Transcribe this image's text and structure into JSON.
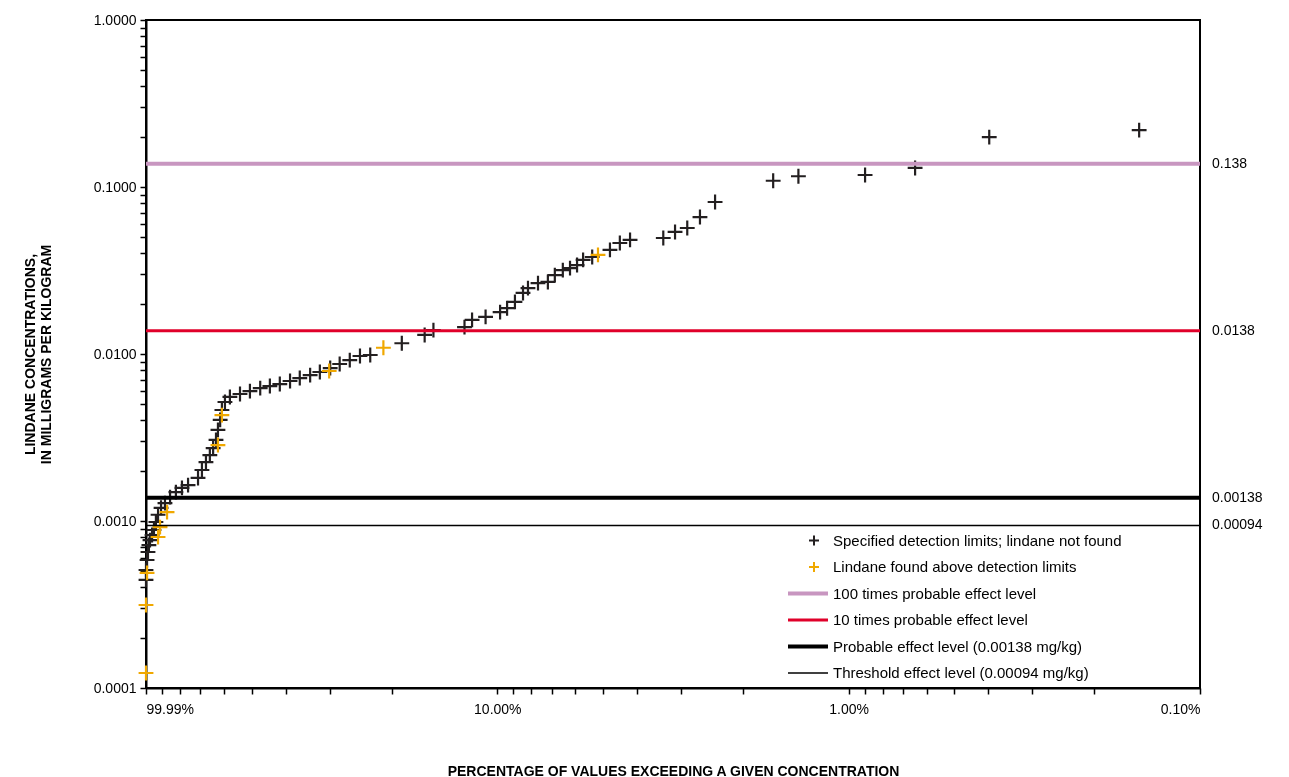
{
  "chart_data": {
    "type": "scatter",
    "xlabel": "PERCENTAGE OF VALUES EXCEEDING A GIVEN CONCENTRATION",
    "ylabel": "LINDANE CONCENTRATIONS,\nIN MILLIGRAMS PER KILOGRAM",
    "log": "xy",
    "grid": false,
    "legend": "bottom right",
    "marker": "cross",
    "xlim": [
      99.99,
      0.1
    ],
    "xticks": [
      {
        "value": 99.99,
        "label": "99.99%"
      },
      {
        "value": 90,
        "label": null
      },
      {
        "value": 80,
        "label": null
      },
      {
        "value": 70,
        "label": null
      },
      {
        "value": 60,
        "label": null
      },
      {
        "value": 50,
        "label": null
      },
      {
        "value": 40,
        "label": null
      },
      {
        "value": 30,
        "label": null
      },
      {
        "value": 20,
        "label": null
      },
      {
        "value": 10,
        "label": "10.00%"
      },
      {
        "value": 9,
        "label": null
      },
      {
        "value": 8,
        "label": null
      },
      {
        "value": 7,
        "label": null
      },
      {
        "value": 6,
        "label": null
      },
      {
        "value": 5,
        "label": null
      },
      {
        "value": 4,
        "label": null
      },
      {
        "value": 3,
        "label": null
      },
      {
        "value": 2,
        "label": null
      },
      {
        "value": 1,
        "label": "1.00%"
      },
      {
        "value": 0.9,
        "label": null
      },
      {
        "value": 0.8,
        "label": null
      },
      {
        "value": 0.7,
        "label": null
      },
      {
        "value": 0.6,
        "label": null
      },
      {
        "value": 0.5,
        "label": null
      },
      {
        "value": 0.4,
        "label": null
      },
      {
        "value": 0.3,
        "label": null
      },
      {
        "value": 0.2,
        "label": null
      },
      {
        "value": 0.1,
        "label": "0.10%"
      }
    ],
    "ylim": [
      0.0001,
      1
    ],
    "yticks": [
      {
        "value": 0.0001,
        "label": "0.0001"
      },
      {
        "value": 0.0002,
        "label": null
      },
      {
        "value": 0.0003,
        "label": null
      },
      {
        "value": 0.0004,
        "label": null
      },
      {
        "value": 0.0005,
        "label": null
      },
      {
        "value": 0.0006,
        "label": null
      },
      {
        "value": 0.0007,
        "label": null
      },
      {
        "value": 0.0008,
        "label": null
      },
      {
        "value": 0.0009,
        "label": null
      },
      {
        "value": 0.001,
        "label": "0.0010"
      },
      {
        "value": 0.002,
        "label": null
      },
      {
        "value": 0.003,
        "label": null
      },
      {
        "value": 0.004,
        "label": null
      },
      {
        "value": 0.005,
        "label": null
      },
      {
        "value": 0.006,
        "label": null
      },
      {
        "value": 0.007,
        "label": null
      },
      {
        "value": 0.008,
        "label": null
      },
      {
        "value": 0.009,
        "label": null
      },
      {
        "value": 0.01,
        "label": "0.0100"
      },
      {
        "value": 0.02,
        "label": null
      },
      {
        "value": 0.03,
        "label": null
      },
      {
        "value": 0.04,
        "label": null
      },
      {
        "value": 0.05,
        "label": null
      },
      {
        "value": 0.06,
        "label": null
      },
      {
        "value": 0.07,
        "label": null
      },
      {
        "value": 0.08,
        "label": null
      },
      {
        "value": 0.09,
        "label": null
      },
      {
        "value": 0.1,
        "label": "0.1000"
      },
      {
        "value": 0.2,
        "label": null
      },
      {
        "value": 0.3,
        "label": null
      },
      {
        "value": 0.4,
        "label": null
      },
      {
        "value": 0.5,
        "label": null
      },
      {
        "value": 0.6,
        "label": null
      },
      {
        "value": 0.7,
        "label": null
      },
      {
        "value": 0.8,
        "label": null
      },
      {
        "value": 0.9,
        "label": null
      },
      {
        "value": 1,
        "label": "1.0000"
      }
    ],
    "annotations": [
      "0.138",
      "0.0138",
      "0.00138",
      "0.00094"
    ],
    "series": [
      {
        "name": "Specified detection limits; lindane not found",
        "color": "#231f20",
        "x": [
          99.99,
          99.99,
          99.3,
          98.7,
          98.1,
          97.4,
          96.1,
          94.9,
          93.7,
          92.4,
          90.6,
          88.3,
          85.4,
          82.2,
          79.0,
          75.9,
          71.1,
          69.3,
          67.5,
          65.8,
          64.4,
          63.2,
          62.4,
          61.5,
          60.8,
          59.6,
          57.7,
          54.0,
          50.6,
          47.3,
          44.4,
          41.6,
          38.9,
          36.5,
          34.1,
          32.0,
          29.9,
          28.1,
          26.3,
          24.6,
          23.0,
          18.7,
          16.1,
          15.2,
          12.4,
          11.8,
          10.8,
          9.82,
          9.38,
          8.91,
          8.45,
          8.18,
          7.66,
          7.18,
          6.86,
          6.51,
          6.21,
          5.93,
          5.7,
          5.37,
          4.78,
          4.48,
          4.19,
          3.37,
          3.12,
          2.88,
          2.65,
          2.4,
          1.64,
          1.39,
          0.898,
          0.647,
          0.398,
          0.149
        ],
        "values": [
          0.000444,
          0.000509,
          0.000584,
          0.000652,
          0.000718,
          0.000769,
          0.000824,
          0.000883,
          0.000986,
          0.00109,
          0.0012,
          0.00128,
          0.00139,
          0.00149,
          0.00158,
          0.00164,
          0.00181,
          0.00202,
          0.00225,
          0.00248,
          0.00273,
          0.00306,
          0.00351,
          0.00403,
          0.00462,
          0.00516,
          0.00553,
          0.00576,
          0.006,
          0.00625,
          0.00643,
          0.00661,
          0.00689,
          0.00718,
          0.00748,
          0.0078,
          0.00824,
          0.00871,
          0.0092,
          0.00973,
          0.00986,
          0.0116,
          0.013,
          0.0139,
          0.0145,
          0.016,
          0.0167,
          0.0178,
          0.0188,
          0.0205,
          0.0232,
          0.0248,
          0.0266,
          0.027,
          0.0297,
          0.0318,
          0.0327,
          0.0341,
          0.0366,
          0.0381,
          0.042,
          0.0462,
          0.0482,
          0.0495,
          0.0538,
          0.0568,
          0.0661,
          0.0813,
          0.109,
          0.116,
          0.118,
          0.13,
          0.199,
          0.219
        ]
      },
      {
        "name": "Lindane found above detection limits",
        "color": "#f0a800",
        "x": [
          99.99,
          99.99,
          99.3,
          92.4,
          91.2,
          87.1,
          62.4,
          60.8,
          30.1,
          21.1,
          5.17
        ],
        "values": [
          0.000123,
          0.000314,
          0.000489,
          0.000802,
          0.00092,
          0.00113,
          0.00285,
          0.00431,
          0.00791,
          0.0109,
          0.0392
        ]
      }
    ],
    "ref_lines": [
      {
        "axis": "y",
        "value": 0.138,
        "label": "100 times probable effect level",
        "color": "#c896c0"
      },
      {
        "axis": "y",
        "value": 0.0138,
        "label": "10 times probable effect level",
        "color": "#e0002a"
      },
      {
        "axis": "y",
        "value": 0.00138,
        "label": "Probable effect level (0.00138 mg/kg)",
        "color": "#000000"
      },
      {
        "axis": "y",
        "value": 0.00094,
        "label": "Threshold effect level (0.00094 mg/kg)",
        "color": "#000000"
      }
    ]
  }
}
